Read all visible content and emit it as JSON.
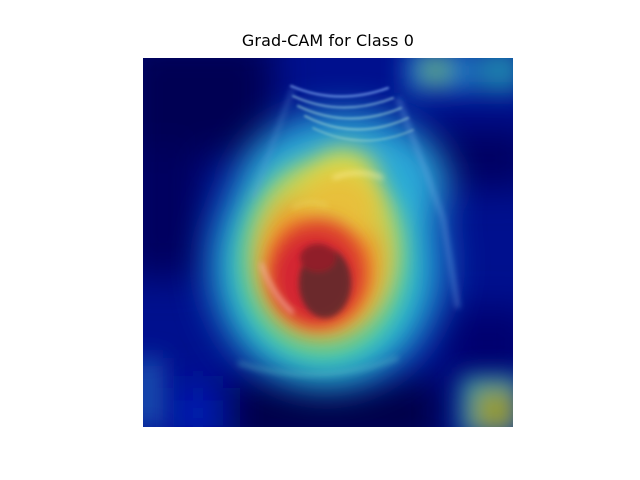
{
  "figure": {
    "title": "Grad-CAM for Class 0"
  },
  "image": {
    "content": "ultrasound-scan-with-gradcam-heatmap-overlay",
    "colormap": "jet",
    "colors": {
      "background": "#ffffff",
      "cold": "#00007f",
      "blue": "#0018c8",
      "cyan": "#2fd0d6",
      "green": "#7ad07a",
      "yellow": "#e8dd46",
      "orange": "#f08a22",
      "red": "#d8262c",
      "olive": "#97991b"
    }
  }
}
